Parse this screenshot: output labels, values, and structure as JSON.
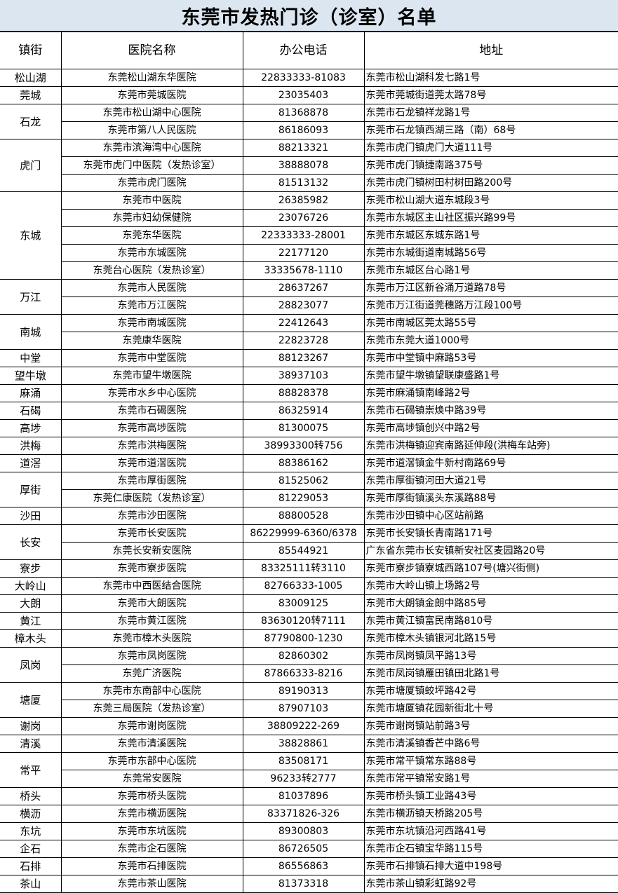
{
  "title": "东莞市发热门诊（诊室）名单",
  "headers": [
    "镇街",
    "医院名称",
    "办公电话",
    "地址"
  ],
  "groups": [
    {
      "town": "松山湖",
      "hospitals": [
        {
          "name": "东莞松山湖东华医院",
          "phone": "22833333-81083",
          "address": "东莞市松山湖科发七路1号"
        }
      ]
    },
    {
      "town": "莞城",
      "hospitals": [
        {
          "name": "东莞市莞城医院",
          "phone": "23035403",
          "address": "东莞市莞城街道莞太路78号"
        }
      ]
    },
    {
      "town": "石龙",
      "hospitals": [
        {
          "name": "东莞市松山湖中心医院",
          "phone": "81368878",
          "address": "东莞市石龙镇祥龙路1号"
        },
        {
          "name": "东莞市第八人民医院",
          "phone": "86186093",
          "address": "东莞市石龙镇西湖三路（南）68号"
        }
      ]
    },
    {
      "town": "虎门",
      "hospitals": [
        {
          "name": "东莞市滨海湾中心医院",
          "phone": "88213321",
          "address": "东莞市虎门镇虎门大道111号"
        },
        {
          "name": "东莞市虎门中医院（发热诊室）",
          "phone": "38888078",
          "address": "东莞市虎门镇捷南路375号"
        },
        {
          "name": "东莞市虎门医院",
          "phone": "81513132",
          "address": "东莞市虎门镇树田村树田路200号"
        }
      ]
    },
    {
      "town": "东城",
      "hospitals": [
        {
          "name": "东莞市中医院",
          "phone": "26385982",
          "address": "东莞市松山湖大道东城段3号"
        },
        {
          "name": "东莞市妇幼保健院",
          "phone": "23076726",
          "address": "东莞市东城区主山社区振兴路99号"
        },
        {
          "name": "东莞东华医院",
          "phone": "22333333-28001",
          "address": "东莞市东城区东城东路1号"
        },
        {
          "name": "东莞市东城医院",
          "phone": "22177120",
          "address": "东莞市东城街道南城路56号"
        },
        {
          "name": "东莞台心医院（发热诊室）",
          "phone": "33335678-1110",
          "address": "东莞市东城区台心路1号"
        }
      ]
    },
    {
      "town": "万江",
      "hospitals": [
        {
          "name": "东莞市人民医院",
          "phone": "28637267",
          "address": "东莞市万江区新谷涌万道路78号"
        },
        {
          "name": "东莞市万江医院",
          "phone": "28823077",
          "address": "东莞市万江街道莞穗路万江段100号"
        }
      ]
    },
    {
      "town": "南城",
      "hospitals": [
        {
          "name": "东莞市南城医院",
          "phone": "22412643",
          "address": "东莞市南城区莞太路55号"
        },
        {
          "name": "东莞康华医院",
          "phone": "22823728",
          "address": "东莞市东莞大道1000号"
        }
      ]
    },
    {
      "town": "中堂",
      "hospitals": [
        {
          "name": "东莞市中堂医院",
          "phone": "88123267",
          "address": "东莞市中堂镇中麻路53号"
        }
      ]
    },
    {
      "town": "望牛墩",
      "hospitals": [
        {
          "name": "东莞市望牛墩医院",
          "phone": "38937103",
          "address": "东莞市望牛墩镇望联康盛路1号"
        }
      ]
    },
    {
      "town": "麻涌",
      "hospitals": [
        {
          "name": "东莞市水乡中心医院",
          "phone": "88828378",
          "address": "东莞市麻涌镇南峰路2号"
        }
      ]
    },
    {
      "town": "石碣",
      "hospitals": [
        {
          "name": "东莞市石碣医院",
          "phone": "86325914",
          "address": "东莞市石碣镇崇焕中路39号"
        }
      ]
    },
    {
      "town": "高埗",
      "hospitals": [
        {
          "name": "东莞市高埗医院",
          "phone": "81300075",
          "address": "东莞市高埗镇创兴中路2号"
        }
      ]
    },
    {
      "town": "洪梅",
      "hospitals": [
        {
          "name": "东莞市洪梅医院",
          "phone": "38993300转756",
          "address": "东莞市洪梅镇迎宾南路延伸段(洪梅车站旁)"
        }
      ]
    },
    {
      "town": "道滘",
      "hospitals": [
        {
          "name": "东莞市道滘医院",
          "phone": "88386162",
          "address": "东莞市道滘镇金牛新村南路69号"
        }
      ]
    },
    {
      "town": "厚街",
      "hospitals": [
        {
          "name": "东莞市厚街医院",
          "phone": "81525062",
          "address": "东莞市厚街镇河田大道21号"
        },
        {
          "name": "东莞仁康医院（发热诊室）",
          "phone": "81229053",
          "address": "东莞市厚街镇溪头东溪路88号"
        }
      ]
    },
    {
      "town": "沙田",
      "hospitals": [
        {
          "name": "东莞市沙田医院",
          "phone": "88800528",
          "address": "东莞市沙田镇中心区站前路"
        }
      ]
    },
    {
      "town": "长安",
      "hospitals": [
        {
          "name": "东莞市长安医院",
          "phone": "86229999-6360/6378",
          "address": "东莞市长安镇长青南路171号"
        },
        {
          "name": "东莞长安新安医院",
          "phone": "85544921",
          "address": "广东省东莞市长安镇新安社区麦园路20号"
        }
      ]
    },
    {
      "town": "寮步",
      "hospitals": [
        {
          "name": "东莞市寮步医院",
          "phone": "83325111转3110",
          "address": "东莞市寮步镇寮城西路107号(塘兴街侧)"
        }
      ]
    },
    {
      "town": "大岭山",
      "hospitals": [
        {
          "name": "东莞市中西医结合医院",
          "phone": "82766333-1005",
          "address": "东莞市大岭山镇上场路2号"
        }
      ]
    },
    {
      "town": "大朗",
      "hospitals": [
        {
          "name": "东莞市大朗医院",
          "phone": "83009125",
          "address": "东莞市大朗镇金朗中路85号"
        }
      ]
    },
    {
      "town": "黄江",
      "hospitals": [
        {
          "name": "东莞市黄江医院",
          "phone": "83630120转7111",
          "address": "东莞市黄江镇富民南路810号"
        }
      ]
    },
    {
      "town": "樟木头",
      "hospitals": [
        {
          "name": "东莞市樟木头医院",
          "phone": "87790800-1230",
          "address": "东莞市樟木头镇银河北路15号"
        }
      ]
    },
    {
      "town": "凤岗",
      "hospitals": [
        {
          "name": "东莞市凤岗医院",
          "phone": "82860302",
          "address": "东莞市凤岗镇凤平路13号"
        },
        {
          "name": "东莞广济医院",
          "phone": "87866333-8216",
          "address": "东莞市凤岗镇雁田镇田北路1号"
        }
      ]
    },
    {
      "town": "塘厦",
      "hospitals": [
        {
          "name": "东莞市东南部中心医院",
          "phone": "89190313",
          "address": "东莞市塘厦镇蛟坪路42号"
        },
        {
          "name": "东莞三局医院（发热诊室）",
          "phone": "87907103",
          "address": "东莞市塘厦镇花园新街北十号"
        }
      ]
    },
    {
      "town": "谢岗",
      "hospitals": [
        {
          "name": "东莞市谢岗医院",
          "phone": "38809222-269",
          "address": "东莞市谢岗镇站前路3号"
        }
      ]
    },
    {
      "town": "清溪",
      "hospitals": [
        {
          "name": "东莞市清溪医院",
          "phone": "38828861",
          "address": "东莞市清溪镇香芒中路6号"
        }
      ]
    },
    {
      "town": "常平",
      "hospitals": [
        {
          "name": "东莞市东部中心医院",
          "phone": "83508171",
          "address": "东莞市常平镇常东路88号"
        },
        {
          "name": "东莞常安医院",
          "phone": "96233转2777",
          "address": "东莞市常平镇常安路1号"
        }
      ]
    },
    {
      "town": "桥头",
      "hospitals": [
        {
          "name": "东莞市桥头医院",
          "phone": "81037896",
          "address": "东莞市桥头镇工业路43号"
        }
      ]
    },
    {
      "town": "横沥",
      "hospitals": [
        {
          "name": "东莞市横沥医院",
          "phone": "83371826-326",
          "address": "东莞市横沥镇天桥路205号"
        }
      ]
    },
    {
      "town": "东坑",
      "hospitals": [
        {
          "name": "东莞市东坑医院",
          "phone": "89300803",
          "address": "东莞市东坑镇沿河西路41号"
        }
      ]
    },
    {
      "town": "企石",
      "hospitals": [
        {
          "name": "东莞市企石医院",
          "phone": "86726505",
          "address": "东莞市企石镇宝华路115号"
        }
      ]
    },
    {
      "town": "石排",
      "hospitals": [
        {
          "name": "东莞市石排医院",
          "phone": "86556863",
          "address": "东莞市石排镇石排大道中198号"
        }
      ]
    },
    {
      "town": "茶山",
      "hospitals": [
        {
          "name": "东莞市茶山医院",
          "phone": "81373318",
          "address": "东莞市茶山镇彩虹路92号"
        }
      ]
    }
  ]
}
